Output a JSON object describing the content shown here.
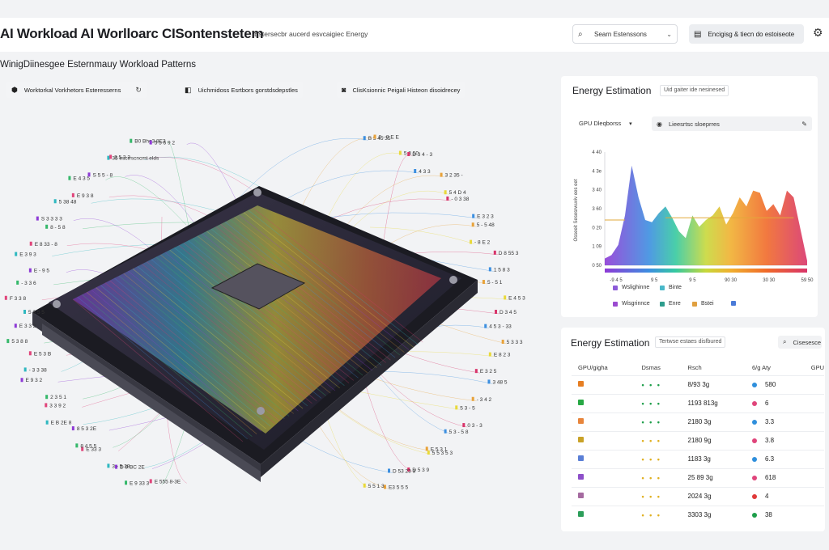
{
  "header": {
    "title": "AI Workload AI Worlloarc CISontenstetem",
    "subtitle": "Estersecbr aucerd esvcaigiec Energy",
    "search_placeholder": "Searn Estenssons",
    "action_label": "Encigisg & tiecn do estoiseote"
  },
  "section_title": "WinigDiinesgee Esternmauy Workload Patterns",
  "chips": [
    {
      "label": "Worktorkal Vorkhetors Esteresserns",
      "icon": "tag-icon"
    },
    {
      "label": "Uichmidoss Esrtbors gorstdsdepstles",
      "icon": "bookmark-icon"
    },
    {
      "label": "ClisKsionnic Peigali Histeon disoidrecey",
      "icon": "lock-icon"
    }
  ],
  "viz_labels": [
    "E 555 8-3E",
    "B 5 45 35",
    "E 9 33 3",
    "0 - 8 E E",
    "D 9 BC 2E",
    "5 3 50",
    "3 - 5 38",
    "D 3 4 - 3",
    "E 33 3",
    "4 3 3",
    "8 4 5 5",
    "3 2 35 -",
    "8 5 3 2E",
    "5 4 D 4",
    "E B 2E 8",
    "- 0 3 38",
    "3 3 9 2",
    "E 3 2 3",
    "2 3 5 1",
    "5 - 5 48",
    "E 9 3 2",
    "- 8 E 2",
    "- 3 3 38",
    "D 8 55 3",
    "E 5 3 B",
    "1 5 8 3",
    "5 3 8 8",
    "5 - 5 1",
    "E 3 3 2",
    "E 4 5 3",
    "5 3 5 5",
    "D 3 4 5",
    "F 3 3 8",
    "4 5 3 - 33",
    "- 3 3 6",
    "5 3 3 3",
    "E - 9 5",
    "E 8 2 3",
    "E 3 9 3",
    "E 3 2 5",
    "E 8 33 - 8",
    "3 48 5",
    "8 - 5 8",
    "- 3 4 2",
    "S 3 3 3 3",
    "5 3 - 5",
    "5 38 48",
    "0 3 - 3",
    "E 9 3 8",
    "5 3 - 5 8",
    "E 4 3 5",
    "E 5 3 1",
    "S 5 5 - 8",
    "5 5 3 5 3",
    "35 escrrscncmt elds",
    "D 5 3 9",
    "3 5 3 3",
    "D 53 23 3",
    "B0 Bhg3 8E3",
    "E3 5 5 5",
    "5 5 6 9 2",
    "5 5 1 3"
  ],
  "energy_chart": {
    "title": "Energy Estimation",
    "badge": "Uid gaiter ide nesinesed",
    "dropdown_label": "GPU Dleqborss",
    "filter_label": "Lieesrtsc sloeprres",
    "ylabel": "Osseeit Sesesrwuviv ees eet",
    "yticks": [
      "4 40",
      "4 3e",
      "3 40",
      "3 60",
      "0 20",
      "1 09",
      "0 50"
    ],
    "xticks": [
      "-9 4 5",
      "9 5",
      "9 5",
      "90 30",
      "30 30",
      "59 50"
    ],
    "legend": [
      {
        "label": "Wslighinne",
        "color": "#8c5bd8"
      },
      {
        "label": "Binte",
        "color": "#49b8c9"
      },
      {
        "label": "Wisgrinnce",
        "color": "#9b4bd0"
      },
      {
        "label": "Enre",
        "color": "#2e9d8d"
      },
      {
        "label": "Bstei",
        "color": "#e0a040"
      },
      {
        "label": "",
        "color": "#4a7bd8"
      }
    ]
  },
  "chart_data": {
    "type": "area",
    "title": "Energy Estimation",
    "xlabel": "",
    "ylabel": "Osseeit Sesesrwuviv ees eet",
    "x": [
      0,
      1,
      2,
      3,
      4,
      5,
      6,
      7,
      8,
      9,
      10,
      11,
      12,
      13,
      14,
      15,
      16,
      17,
      18,
      19,
      20,
      21,
      22,
      23,
      24,
      25,
      26,
      27,
      28,
      29,
      30
    ],
    "series": [
      {
        "values": [
          0.3,
          0.45,
          0.9,
          2.2,
          4.4,
          3.0,
          2.0,
          1.9,
          2.3,
          2.6,
          2.1,
          1.5,
          1.2,
          2.2,
          1.7,
          2.0,
          2.2,
          2.6,
          1.8,
          2.3,
          3.0,
          2.6,
          3.3,
          3.2,
          2.4,
          2.7,
          2.2,
          3.3,
          3.0,
          1.6,
          0.2
        ]
      }
    ],
    "ylim": [
      0,
      5
    ]
  },
  "estimation_table": {
    "title": "Energy Estimation",
    "badge": "Tertwse estaes disfbured",
    "search_label": "Cisesesce",
    "columns": [
      "GPU/gigha",
      "Dsmas",
      "Rsch",
      "6/g Aty",
      "GPU"
    ],
    "rows": [
      {
        "color": "#e67e22",
        "dots": "• • •",
        "dot_color": "#1e9e4a",
        "value": "8/93 3g",
        "gcolor": "#2f8fdc",
        "gpu": "580"
      },
      {
        "color": "#27a844",
        "dots": "• • •",
        "dot_color": "#1e9e4a",
        "value": "1193 813g",
        "gcolor": "#e0457b",
        "gpu": "6"
      },
      {
        "color": "#e8853b",
        "dots": "• • •",
        "dot_color": "#1e9e4a",
        "value": "2180 3g",
        "gcolor": "#2f8fdc",
        "gpu": "3.3"
      },
      {
        "color": "#c9a227",
        "dots": "• • •",
        "dot_color": "#e0b020",
        "value": "2180 9g",
        "gcolor": "#e0457b",
        "gpu": "3.8"
      },
      {
        "color": "#5a7fd6",
        "dots": "• • •",
        "dot_color": "#e0b020",
        "value": "1183 3g",
        "gcolor": "#2f8fdc",
        "gpu": "6.3"
      },
      {
        "color": "#8d4fc9",
        "dots": "• • •",
        "dot_color": "#e0b020",
        "value": "25 89 3g",
        "gcolor": "#e0457b",
        "gpu": "618"
      },
      {
        "color": "#a56aa0",
        "dots": "• • •",
        "dot_color": "#e0b020",
        "value": "2024 3g",
        "gcolor": "#e03a3a",
        "gpu": "4"
      },
      {
        "color": "#2c9e5a",
        "dots": "• • •",
        "dot_color": "#e0b020",
        "value": "3303 3g",
        "gcolor": "#1e9e4a",
        "gpu": "38"
      }
    ]
  }
}
